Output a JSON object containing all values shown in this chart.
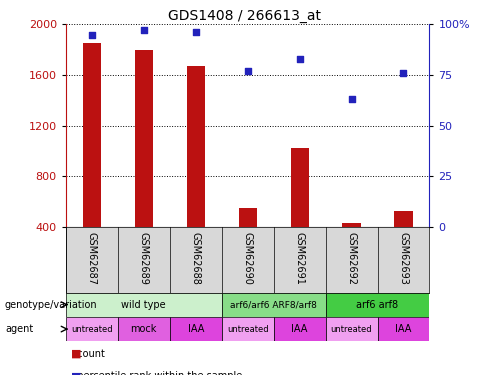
{
  "title": "GDS1408 / 266613_at",
  "samples": [
    "GSM62687",
    "GSM62689",
    "GSM62688",
    "GSM62690",
    "GSM62691",
    "GSM62692",
    "GSM62693"
  ],
  "counts": [
    1855,
    1800,
    1670,
    548,
    1020,
    432,
    528
  ],
  "percentile": [
    95,
    97,
    96,
    77,
    83,
    63,
    76
  ],
  "ylim_left": [
    400,
    2000
  ],
  "ylim_right": [
    0,
    100
  ],
  "yticks_left": [
    400,
    800,
    1200,
    1600,
    2000
  ],
  "yticks_right": [
    0,
    25,
    50,
    75,
    100
  ],
  "bar_color": "#bb1111",
  "scatter_color": "#2222bb",
  "bar_width": 0.35,
  "genotype_groups": [
    {
      "label": "wild type",
      "start": 0,
      "end": 3,
      "color": "#ccf0cc"
    },
    {
      "label": "arf6/arf6 ARF8/arf8",
      "start": 3,
      "end": 5,
      "color": "#88dd88"
    },
    {
      "label": "arf6 arf8",
      "start": 5,
      "end": 7,
      "color": "#44cc44"
    }
  ],
  "agent_groups": [
    {
      "label": "untreated",
      "start": 0,
      "end": 1,
      "color": "#f0a0f0"
    },
    {
      "label": "mock",
      "start": 1,
      "end": 2,
      "color": "#e060e0"
    },
    {
      "label": "IAA",
      "start": 2,
      "end": 3,
      "color": "#dd44dd"
    },
    {
      "label": "untreated",
      "start": 3,
      "end": 4,
      "color": "#f0a0f0"
    },
    {
      "label": "IAA",
      "start": 4,
      "end": 5,
      "color": "#dd44dd"
    },
    {
      "label": "untreated",
      "start": 5,
      "end": 6,
      "color": "#f0a0f0"
    },
    {
      "label": "IAA",
      "start": 6,
      "end": 7,
      "color": "#dd44dd"
    }
  ],
  "legend_count_color": "#bb1111",
  "legend_pct_color": "#2222bb",
  "label_color_left": "#bb1111",
  "label_color_right": "#2222bb",
  "grid_color": "#000000",
  "tick_fontsize": 8,
  "title_fontsize": 10,
  "annot_fontsize": 7,
  "sample_fontsize": 7
}
